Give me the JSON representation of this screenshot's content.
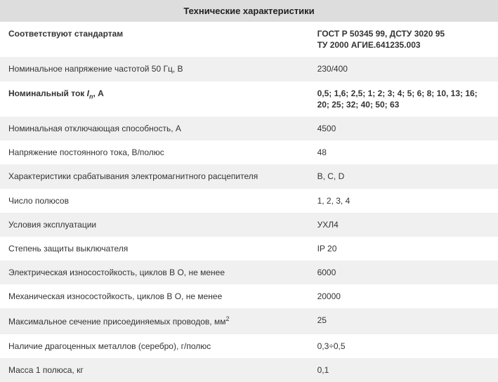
{
  "table": {
    "title": "Технические характеристики",
    "header_bg": "#dddddd",
    "row_alt_bg": "#f0f0f0",
    "row_bg": "#ffffff",
    "text_color": "#333333",
    "title_fontsize": 13,
    "body_fontsize": 12,
    "rows": [
      {
        "label_html": "Соответствуют стандартам",
        "value_html": "ГОСТ Р 50345 99, ДСТУ 3020 95<br>ТУ 2000 АГИЕ.641235.003",
        "label_bold": true,
        "value_bold": true
      },
      {
        "label_html": "Номинальное напряжение частотой 50 Гц, В",
        "value_html": "230/400"
      },
      {
        "label_html": "Номинальный ток <span class=\"ital\">I<sub>n</sub></span>, А",
        "value_html": "0,5; 1,6; 2,5; 1; 2; 3; 4; 5; 6; 8; 10, 13; 16; 20; 25; 32; 40; 50; 63",
        "label_bold": true,
        "value_bold": true
      },
      {
        "label_html": "Номинальная отключающая способность, А",
        "value_html": "4500"
      },
      {
        "label_html": "Напряжение постоянного тока, В/полюс",
        "value_html": "48"
      },
      {
        "label_html": "Характеристики срабатывания электромагнитного расцепителя",
        "value_html": "B, C, D"
      },
      {
        "label_html": "Число полюсов",
        "value_html": "1, 2, 3, 4"
      },
      {
        "label_html": "Условия эксплуатации",
        "value_html": "УХЛ4"
      },
      {
        "label_html": "Степень защиты выключателя",
        "value_html": "IP 20"
      },
      {
        "label_html": "Электрическая износостойкость, циклов В О, не менее",
        "value_html": "6000"
      },
      {
        "label_html": "Механическая износостойкость, циклов В О, не менее",
        "value_html": "20000"
      },
      {
        "label_html": "Максимальное сечение присоединяемых проводов, мм<sup>2</sup>",
        "value_html": "25"
      },
      {
        "label_html": "Наличие драгоценных металлов (серебро), г/полюс",
        "value_html": "0,3÷0,5"
      },
      {
        "label_html": "Масса 1 полюса, кг",
        "value_html": "0,1"
      }
    ]
  }
}
